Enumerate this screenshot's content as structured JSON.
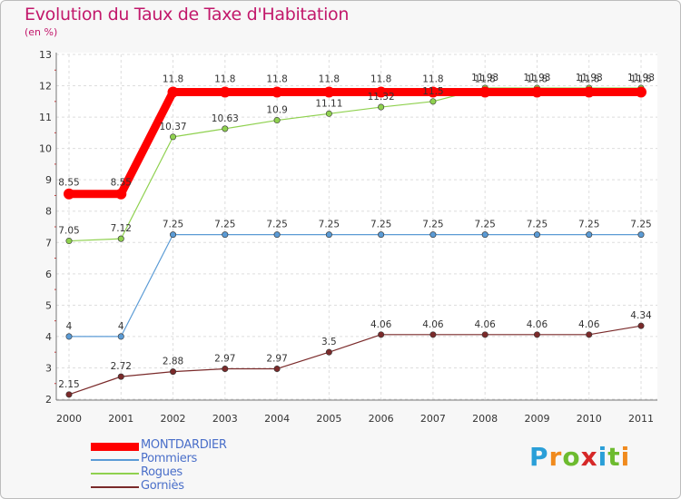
{
  "header": {
    "title": "Evolution du Taux de Taxe d'Habitation",
    "subtitle": "(en %)"
  },
  "logo": {
    "letters": [
      "P",
      "r",
      "o",
      "x",
      "i",
      "t",
      "i"
    ],
    "colors": [
      "#2a9fd8",
      "#f08a1d",
      "#6dbb2f",
      "#d62828",
      "#2a9fd8",
      "#6dbb2f",
      "#f08a1d"
    ]
  },
  "chart_data": {
    "type": "line",
    "title": "Evolution du Taux de Taxe d'Habitation",
    "ylabel": "(en %)",
    "xlabel": "",
    "ylim": [
      2,
      13
    ],
    "yticks": [
      2,
      3,
      4,
      5,
      6,
      7,
      8,
      9,
      10,
      11,
      12,
      13
    ],
    "categories": [
      "2000",
      "2001",
      "2002",
      "2003",
      "2004",
      "2005",
      "2006",
      "2007",
      "2008",
      "2009",
      "2010",
      "2011"
    ],
    "legend_position": "bottom-left",
    "series": [
      {
        "name": "MONTDARDIER",
        "color": "#ff0000",
        "thick": true,
        "values": [
          8.55,
          8.55,
          11.8,
          11.8,
          11.8,
          11.8,
          11.8,
          11.8,
          11.8,
          11.8,
          11.8,
          11.8
        ],
        "labels": [
          "8.55",
          "8.55",
          "11.8",
          "11.8",
          "11.8",
          "11.8",
          "11.8",
          "11.8",
          "11.8",
          "11.8",
          "11.8",
          "11.8"
        ]
      },
      {
        "name": "Pommiers",
        "color": "#5b9bd5",
        "thick": false,
        "values": [
          4,
          4,
          7.25,
          7.25,
          7.25,
          7.25,
          7.25,
          7.25,
          7.25,
          7.25,
          7.25,
          7.25
        ],
        "labels": [
          "4",
          "4",
          "7.25",
          "7.25",
          "7.25",
          "7.25",
          "7.25",
          "7.25",
          "7.25",
          "7.25",
          "7.25",
          "7.25"
        ]
      },
      {
        "name": "Rogues",
        "color": "#8fd14f",
        "thick": false,
        "values": [
          7.05,
          7.12,
          10.37,
          10.63,
          10.9,
          11.11,
          11.32,
          11.5,
          11.93,
          11.93,
          11.93,
          11.93
        ],
        "labels": [
          "7.05",
          "7.12",
          "10.37",
          "10.63",
          "10.9",
          "11.11",
          "11.32",
          "11.5",
          "11.93",
          "11.93",
          "11.93",
          "11.93"
        ]
      },
      {
        "name": "Gorniès",
        "color": "#7a2a2a",
        "thick": false,
        "values": [
          2.15,
          2.72,
          2.88,
          2.97,
          2.97,
          3.5,
          4.06,
          4.06,
          4.06,
          4.06,
          4.06,
          4.34
        ],
        "labels": [
          "2.15",
          "2.72",
          "2.88",
          "2.97",
          "2.97",
          "3.5",
          "4.06",
          "4.06",
          "4.06",
          "4.06",
          "4.06",
          "4.34"
        ]
      }
    ]
  }
}
